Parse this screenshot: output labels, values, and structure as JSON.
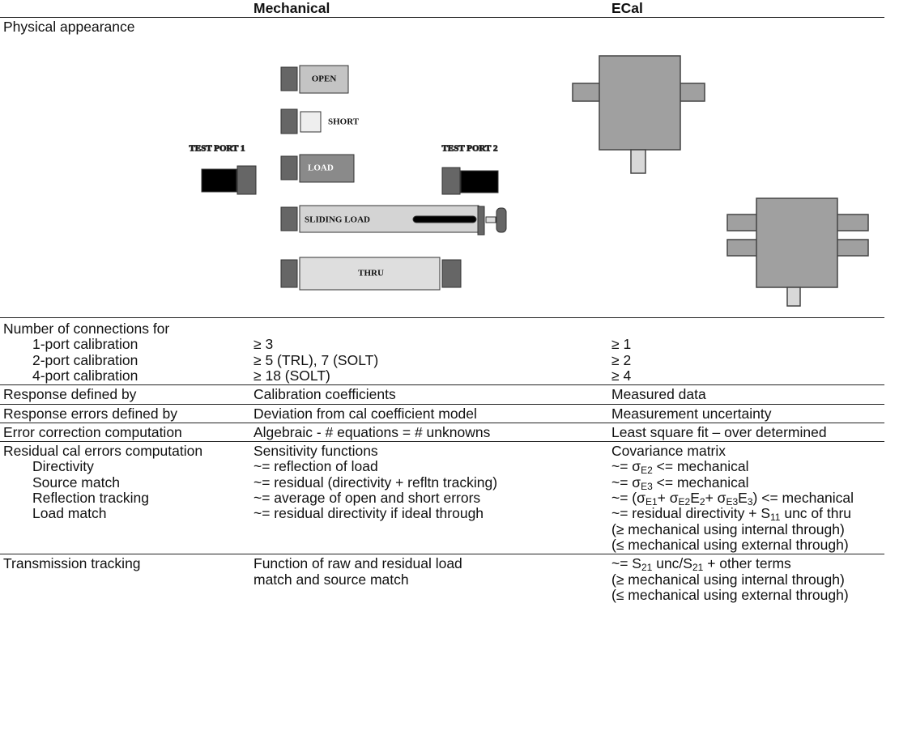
{
  "header": {
    "columns": [
      "Mechanical",
      "ECal"
    ]
  },
  "physical": {
    "label": "Physical appearance",
    "mechanical": {
      "test_port_1": "TEST PORT 1",
      "test_port_2": "TEST PORT 2",
      "standards": [
        "OPEN",
        "SHORT",
        "LOAD",
        "SLIDING LOAD",
        "THRU"
      ]
    }
  },
  "rows": [
    {
      "label": "Number of connections for",
      "items": [
        {
          "label": "1-port calibration",
          "mechanical": "≥ 3",
          "ecal": "≥ 1"
        },
        {
          "label": "2-port calibration",
          "mechanical": "≥ 5 (TRL), 7 (SOLT)",
          "ecal": "≥ 2"
        },
        {
          "label": "4-port calibration",
          "mechanical": "≥ 18 (SOLT)",
          "ecal": "≥ 4"
        }
      ]
    },
    {
      "label": "Response defined by",
      "mechanical": "Calibration coefficients",
      "ecal": "Measured data"
    },
    {
      "label": "Response errors defined by",
      "mechanical": "Deviation from cal coefficient model",
      "ecal": "Measurement uncertainty"
    },
    {
      "label": "Error correction computation",
      "mechanical": "Algebraic - # equations = # unknowns",
      "ecal": "Least square fit – over determined"
    },
    {
      "label": "Residual cal errors computation",
      "mechanical": "Sensitivity functions",
      "ecal": "Covariance matrix",
      "items": [
        {
          "label": "Directivity",
          "mechanical": "~= reflection of load",
          "ecal": [
            [
              "~= σ",
              "E2",
              " <= mechanical"
            ]
          ]
        },
        {
          "label": "Source match",
          "mechanical": "~= residual (directivity + refltn tracking)",
          "ecal": [
            [
              "~= σ",
              "E3",
              " <= mechanical"
            ]
          ]
        },
        {
          "label": "Reflection tracking",
          "mechanical": "~= average of open and short errors",
          "ecal": [
            [
              "~= (σ",
              "E1",
              "+ σ",
              "E2",
              "E",
              "2",
              "+ σ",
              "E3",
              "E",
              "3",
              ") <= mechanical"
            ]
          ]
        },
        {
          "label": "Load match",
          "mechanical": "~= residual directivity if ideal through",
          "ecal": [
            [
              "~= residual directivity + S",
              "11",
              " unc of thru"
            ],
            "(≥ mechanical using internal through)",
            "(≤ mechanical using external through)"
          ]
        }
      ]
    },
    {
      "label": "Transmission tracking",
      "mechanical": [
        "Function of raw and residual load",
        "match and source match"
      ],
      "ecal": [
        [
          "~= S",
          "21",
          " unc/S",
          "21",
          " + other terms"
        ],
        "(≥ mechanical using internal through)",
        "(≤ mechanical using external through)"
      ]
    }
  ]
}
